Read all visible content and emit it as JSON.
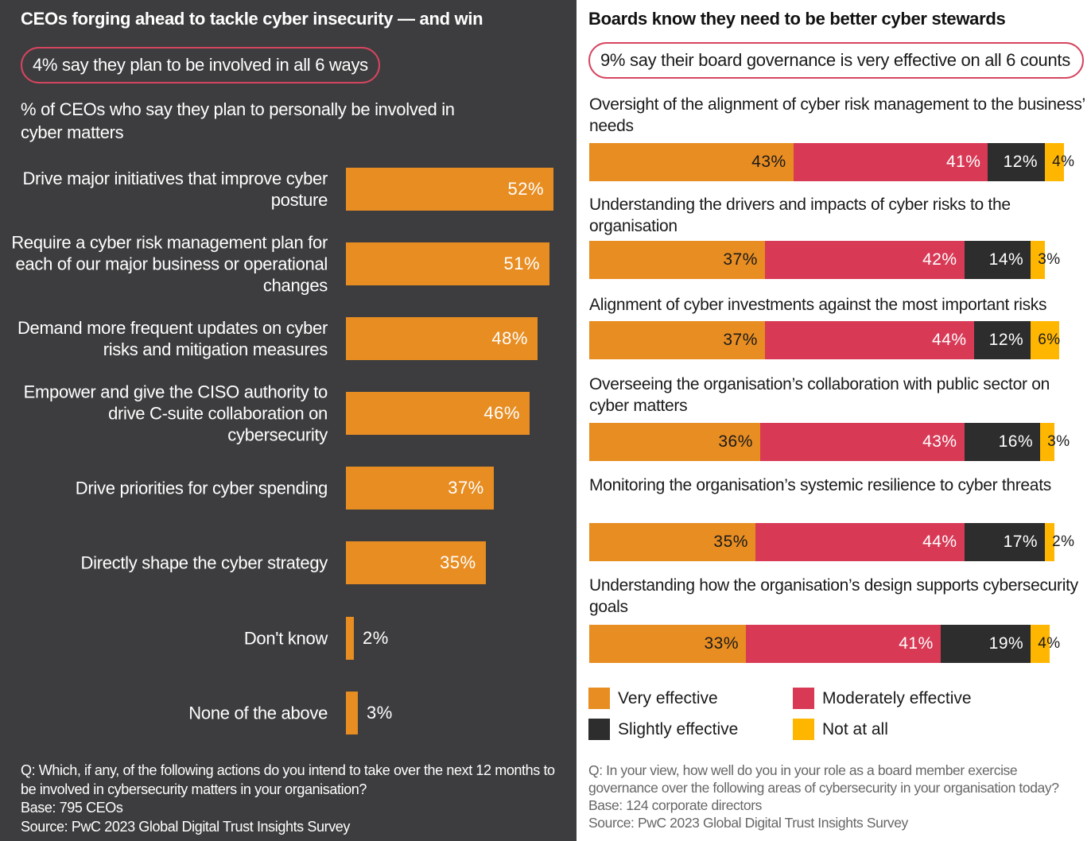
{
  "colors": {
    "left_bg": "#3d3d3f",
    "bar": "#e88d22",
    "very": "#e88d22",
    "moderately": "#d83a56",
    "slightly": "#2d2d2d",
    "not_at_all": "#ffb600",
    "callout_border": "#d64560"
  },
  "left": {
    "title": "CEOs forging ahead to tackle cyber insecurity — and win",
    "callout": "4% say they plan to be involved in all 6 ways",
    "subtitle": "% of CEOs who say they plan to personally be involved in cyber matters",
    "footnote": [
      "Q: Which, if any, of the following actions do you intend to take over the next 12 months to be involved in cybersecurity matters in your organisation?",
      "Base: 795 CEOs",
      "Source: PwC 2023 Global Digital Trust Insights Survey"
    ]
  },
  "right": {
    "title": "Boards know they need to be better cyber stewards",
    "callout": "9% say their board governance is very effective on all 6 counts",
    "legend": [
      "Very effective",
      "Moderately effective",
      "Slightly effective",
      "Not at all"
    ],
    "footnote": [
      "Q: In your view, how well do you in your role as a board member exercise governance over the following areas of cybersecurity in your organisation today?",
      "Base: 124 corporate directors",
      "Source: PwC 2023 Global Digital Trust Insights Survey"
    ]
  },
  "chart_data": [
    {
      "type": "bar",
      "orientation": "horizontal",
      "xlim": [
        0,
        100
      ],
      "grid": false,
      "categories": [
        "Drive major initiatives that improve cyber posture",
        "Require a cyber risk management plan for each of our major business or operational changes",
        "Demand more frequent updates on cyber risks and mitigation measures",
        "Empower and give the CISO authority to drive C-suite collaboration on cybersecurity",
        "Drive priorities for cyber spending",
        "Directly shape the cyber strategy",
        "Don't know",
        "None of the above"
      ],
      "values": [
        52,
        51,
        48,
        46,
        37,
        35,
        2,
        3
      ],
      "labels": [
        "52%",
        "51%",
        "48%",
        "46%",
        "37%",
        "35%",
        "2%",
        "3%"
      ]
    },
    {
      "type": "bar",
      "orientation": "horizontal",
      "stacked": true,
      "xlim": [
        0,
        100
      ],
      "grid": false,
      "legend": "bottom",
      "categories": [
        "Oversight of the alignment of cyber risk management to the business’ needs",
        "Understanding the drivers and impacts of cyber risks to the organisation",
        "Alignment of cyber investments against the most important risks",
        "Overseeing the organisation’s collaboration with public sector on cyber matters",
        "Monitoring the organisation’s systemic resilience to cyber threats",
        "Understanding how the organisation’s design supports cybersecurity goals"
      ],
      "series": [
        {
          "name": "Very effective",
          "values": [
            43,
            37,
            37,
            36,
            35,
            33
          ]
        },
        {
          "name": "Moderately effective",
          "values": [
            41,
            42,
            44,
            43,
            44,
            41
          ]
        },
        {
          "name": "Slightly effective",
          "values": [
            12,
            14,
            12,
            16,
            17,
            19
          ]
        },
        {
          "name": "Not at all",
          "values": [
            4,
            3,
            6,
            3,
            2,
            4
          ]
        }
      ]
    }
  ]
}
